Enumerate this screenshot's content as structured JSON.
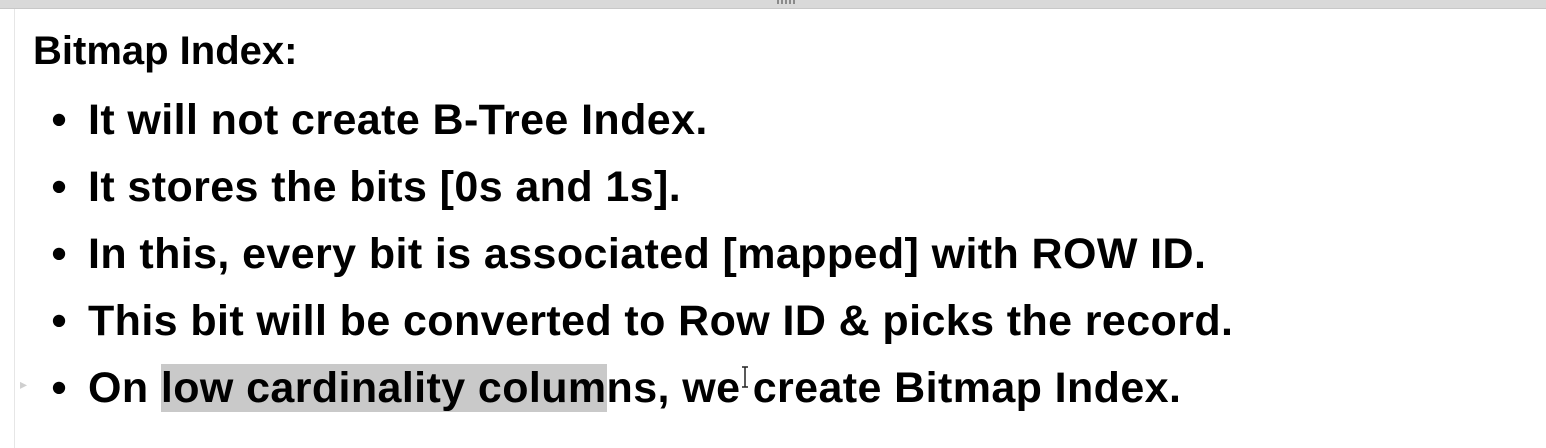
{
  "heading": "Bitmap Index:",
  "bullet_symbol": "•",
  "bullets": [
    {
      "text": "It will not create B-Tree Index."
    },
    {
      "text": "It stores the bits [0s and 1s]."
    },
    {
      "text": "In this, every bit is associated [mapped] with ROW ID."
    },
    {
      "text": "This bit will be converted to Row ID & picks the record."
    },
    {
      "before": "On ",
      "highlighted": "low cardinality colum",
      "after": "ns, we create Bitmap Index."
    }
  ],
  "icons": {
    "row_marker": "play-marker-icon",
    "cursor": "text-cursor-icon"
  },
  "colors": {
    "highlight": "#c9c9c9",
    "top_bar": "#d9d9d9"
  }
}
